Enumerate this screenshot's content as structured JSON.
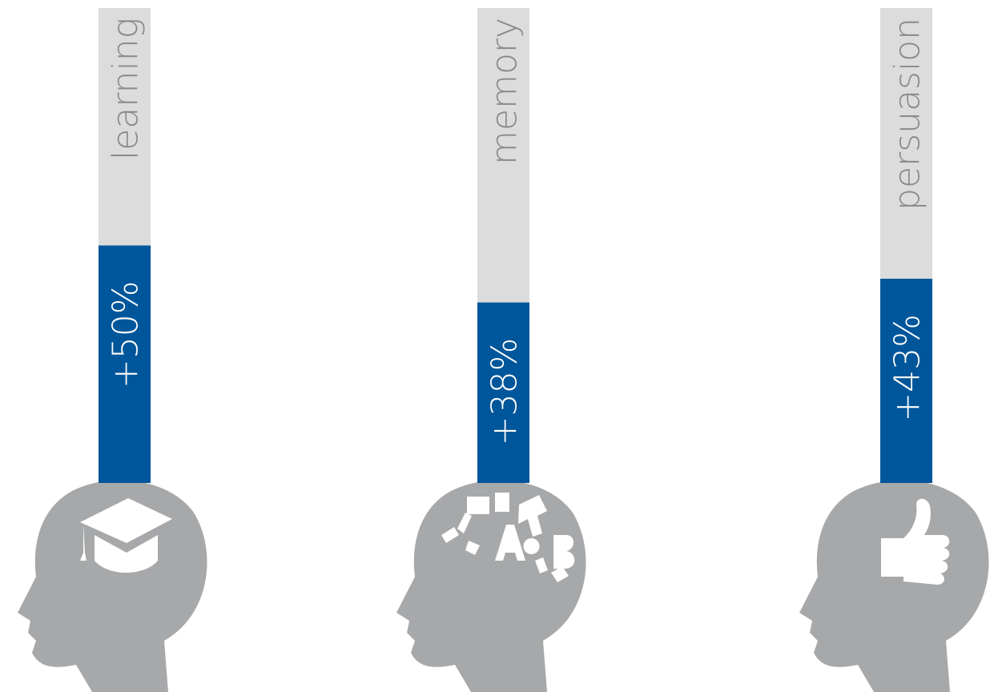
{
  "chart_data": {
    "type": "bar",
    "categories": [
      "learning",
      "memory",
      "persuasion"
    ],
    "values": [
      50,
      38,
      43
    ],
    "value_labels": [
      "+50%",
      "+38%",
      "+43%"
    ],
    "ylim": [
      0,
      100
    ],
    "color": "#00569a",
    "track_color": "#dcdcdc"
  }
}
